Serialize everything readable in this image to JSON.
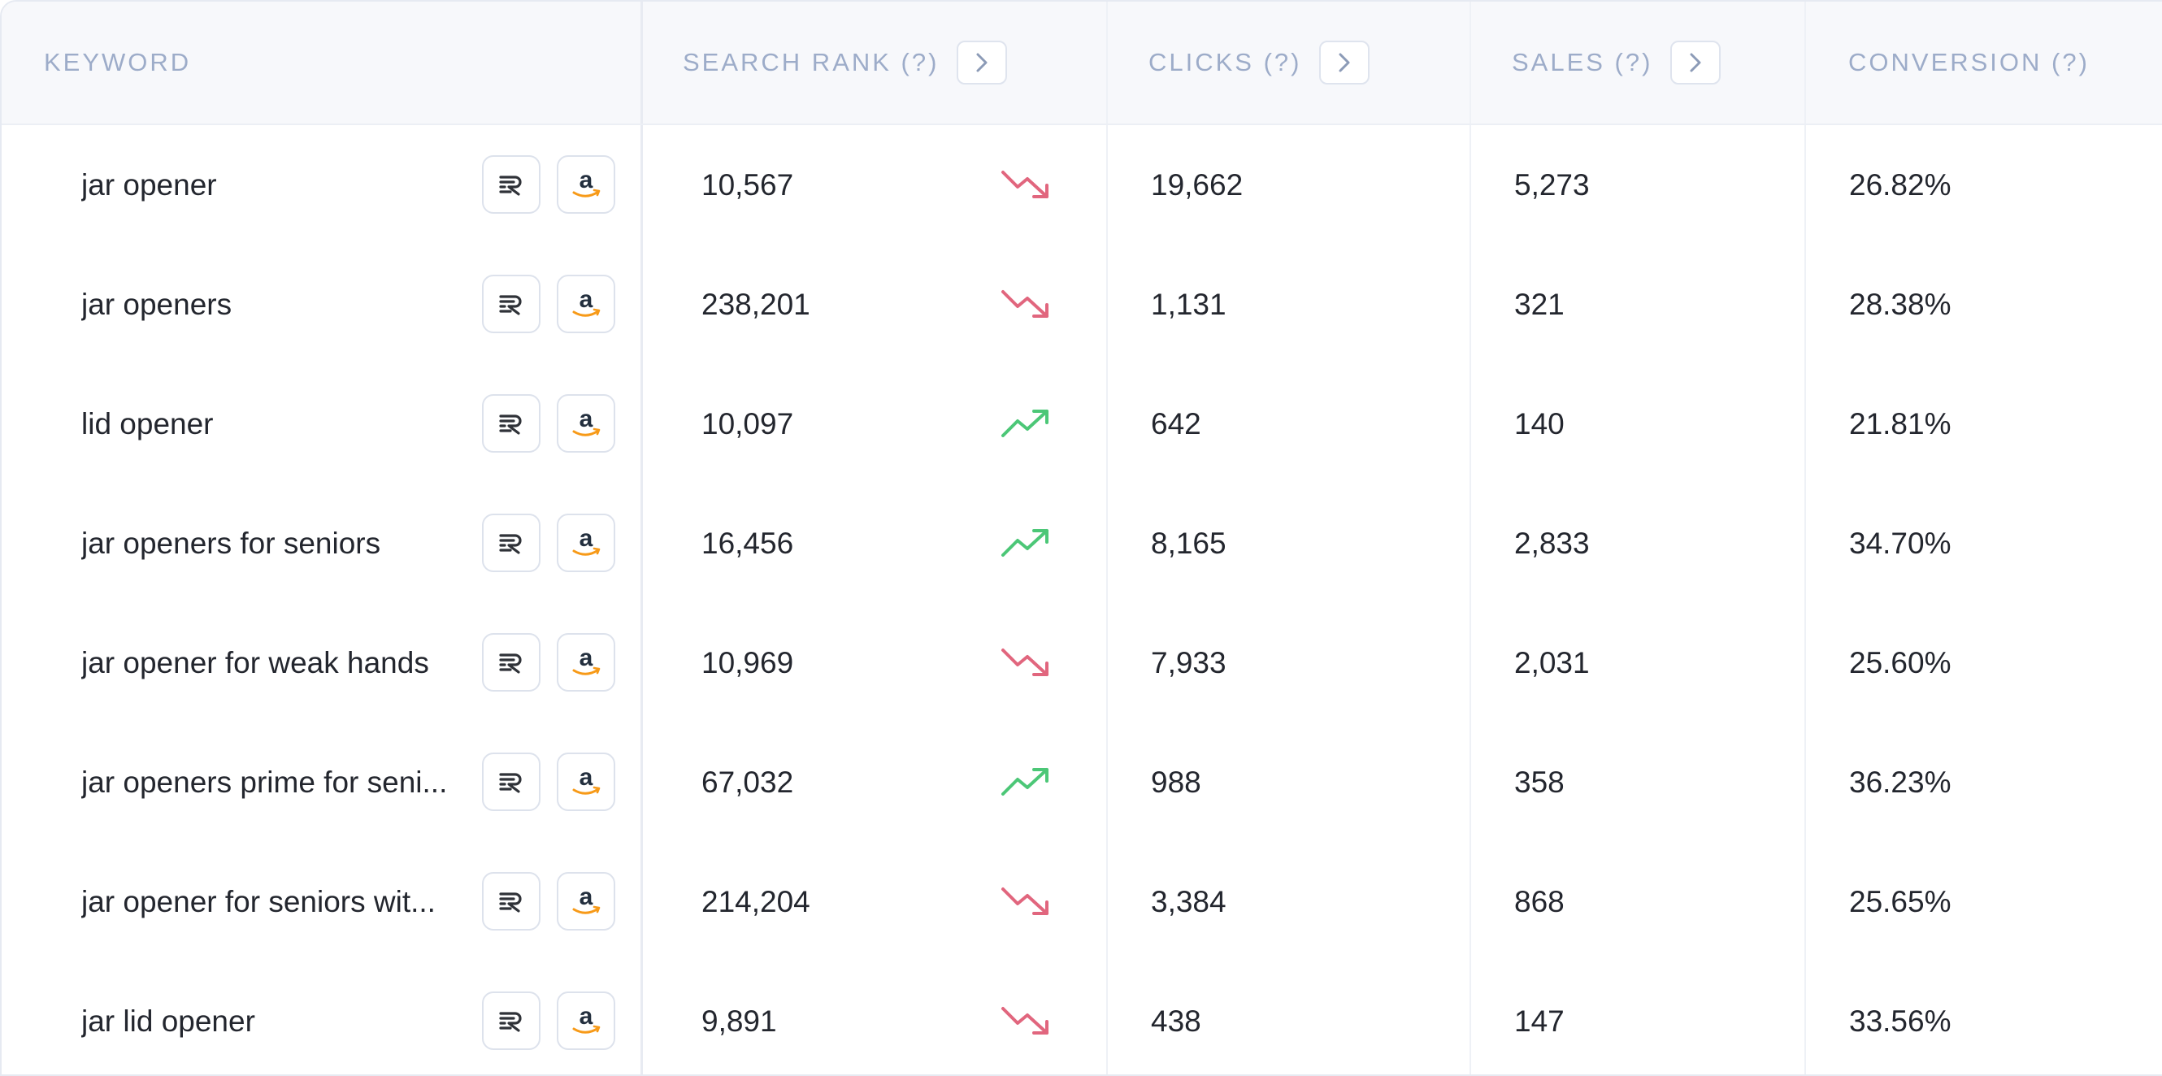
{
  "header": {
    "keyword": "KEYWORD",
    "search_rank": "SEARCH RANK (?)",
    "clicks": "CLICKS (?)",
    "sales": "SALES (?)",
    "conversion": "CONVERSION (?)"
  },
  "colors": {
    "trend_up": "#4cc777",
    "trend_down": "#e1667e",
    "header_text": "#9dacc9"
  },
  "rows": [
    {
      "keyword": "jar opener",
      "search_rank": "10,567",
      "trend": "down",
      "clicks": "19,662",
      "sales": "5,273",
      "conversion": "26.82%"
    },
    {
      "keyword": "jar openers",
      "search_rank": "238,201",
      "trend": "down",
      "clicks": "1,131",
      "sales": "321",
      "conversion": "28.38%"
    },
    {
      "keyword": "lid opener",
      "search_rank": "10,097",
      "trend": "up",
      "clicks": "642",
      "sales": "140",
      "conversion": "21.81%"
    },
    {
      "keyword": "jar openers for seniors",
      "search_rank": "16,456",
      "trend": "up",
      "clicks": "8,165",
      "sales": "2,833",
      "conversion": "34.70%"
    },
    {
      "keyword": "jar opener for weak hands",
      "search_rank": "10,969",
      "trend": "down",
      "clicks": "7,933",
      "sales": "2,031",
      "conversion": "25.60%"
    },
    {
      "keyword": "jar openers prime for seni...",
      "search_rank": "67,032",
      "trend": "up",
      "clicks": "988",
      "sales": "358",
      "conversion": "36.23%"
    },
    {
      "keyword": "jar opener for seniors wit...",
      "search_rank": "214,204",
      "trend": "down",
      "clicks": "3,384",
      "sales": "868",
      "conversion": "25.65%"
    },
    {
      "keyword": "jar lid opener",
      "search_rank": "9,891",
      "trend": "down",
      "clicks": "438",
      "sales": "147",
      "conversion": "33.56%"
    }
  ],
  "icons": {
    "keyword_tool": "sr-logo-icon",
    "amazon": "amazon-logo-icon",
    "sort": "chevron-right-icon"
  }
}
